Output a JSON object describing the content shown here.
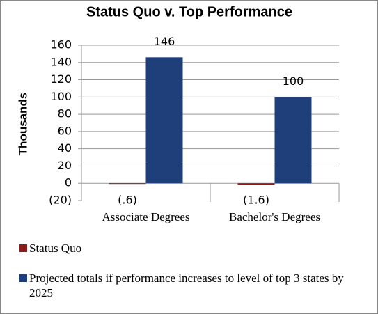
{
  "chart_data": {
    "type": "bar",
    "title": "Status Quo v. Top Performance",
    "ylabel": "Thousands",
    "categories": [
      "Associate Degrees",
      "Bachelor's Degrees"
    ],
    "series": [
      {
        "name": "Status Quo",
        "color": "#8b1a1a",
        "values": [
          -0.6,
          -1.6
        ],
        "value_labels": [
          "(.6)",
          "(1.6)"
        ]
      },
      {
        "name": "Projected totals if performance increases to level of top 3 states by 2025",
        "color": "#1f3f7a",
        "values": [
          146,
          100
        ]
      }
    ],
    "ylim": [
      -20,
      160
    ],
    "yticks": [
      {
        "value": -20,
        "label": "(20)"
      },
      0,
      20,
      40,
      60,
      80,
      100,
      120,
      140,
      160
    ],
    "grid": true,
    "legend": "bottom"
  }
}
